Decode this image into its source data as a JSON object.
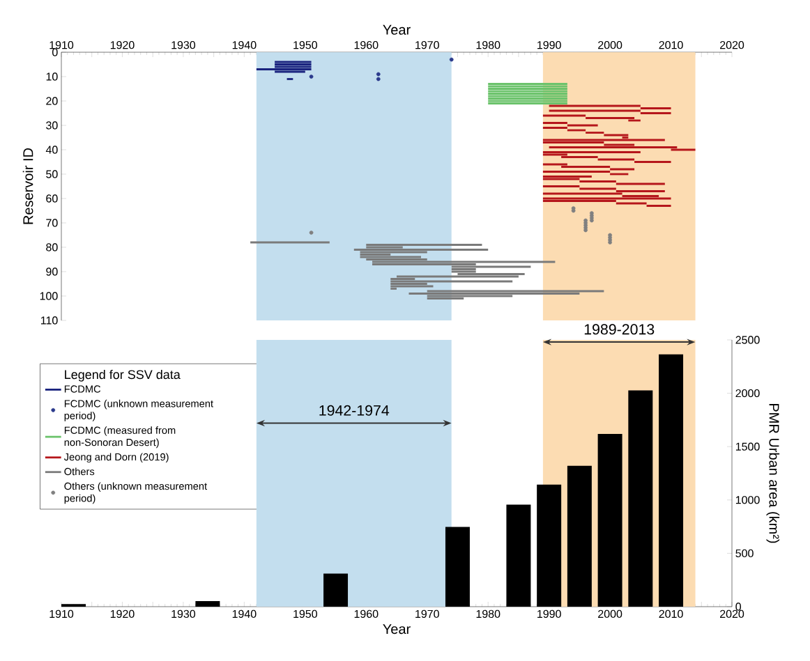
{
  "chart_data": [
    {
      "type": "line",
      "xlabel": "Year",
      "ylabel": "Reservoir ID",
      "legend_title": "Legend for SSV data",
      "legend": "bottom left",
      "xlim": [
        1910,
        2020
      ],
      "ylim": [
        110,
        0
      ],
      "xticks": [
        1910,
        {
          "value": 1915,
          "label": null
        },
        1920,
        {
          "value": 1925,
          "label": null
        },
        1930,
        {
          "value": 1935,
          "label": null
        },
        1940,
        {
          "value": 1945,
          "label": null
        },
        1950,
        {
          "value": 1955,
          "label": null
        },
        1960,
        {
          "value": 1965,
          "label": null
        },
        1970,
        {
          "value": 1975,
          "label": null
        },
        1980,
        {
          "value": 1985,
          "label": null
        },
        1990,
        {
          "value": 1995,
          "label": null
        },
        2000,
        {
          "value": 2005,
          "label": null
        },
        2010,
        {
          "value": 2015,
          "label": null
        },
        2020
      ],
      "yticks": [
        0,
        10,
        20,
        30,
        40,
        50,
        60,
        70,
        80,
        90,
        100,
        110
      ],
      "bands": [
        {
          "axis": "x",
          "from": 1942,
          "to": 1974,
          "color": "#c3deee"
        },
        {
          "axis": "x",
          "from": 1989,
          "to": 2014,
          "color": "#fcdcb2"
        }
      ],
      "series": [
        {
          "name": "FCDMC",
          "type": "line",
          "color": "#1a237e",
          "x": [
            1945,
            1951
          ],
          "values": [
            4,
            4
          ]
        },
        {
          "type": "line",
          "color": "#1a237e",
          "x": [
            1945,
            1951
          ],
          "values": [
            5,
            5
          ]
        },
        {
          "type": "line",
          "color": "#1a237e",
          "x": [
            1945,
            1951
          ],
          "values": [
            6,
            6
          ]
        },
        {
          "type": "line",
          "color": "#1a237e",
          "x": [
            1942,
            1951
          ],
          "values": [
            7,
            7
          ]
        },
        {
          "type": "line",
          "color": "#1a237e",
          "x": [
            1945,
            1950
          ],
          "values": [
            8,
            8
          ]
        },
        {
          "type": "line",
          "color": "#1a237e",
          "x": [
            1947,
            1948
          ],
          "values": [
            11,
            11
          ]
        },
        {
          "name": "FCDMC (unknown measurement period)",
          "type": "scatter",
          "color": "#2b3a8c",
          "x": [
            1951,
            1962,
            1962,
            1974
          ],
          "values": [
            10,
            9,
            11,
            3
          ]
        },
        {
          "name": "FCDMC (measured from non-Sonoran Desert)",
          "type": "line",
          "color": "#6cc36c",
          "x": [
            1980,
            1993
          ],
          "values": [
            13,
            13
          ]
        },
        {
          "type": "line",
          "color": "#6cc36c",
          "x": [
            1980,
            1993
          ],
          "values": [
            14,
            14
          ]
        },
        {
          "type": "line",
          "color": "#6cc36c",
          "x": [
            1980,
            1993
          ],
          "values": [
            15,
            15
          ]
        },
        {
          "type": "line",
          "color": "#6cc36c",
          "x": [
            1980,
            1993
          ],
          "values": [
            16,
            16
          ]
        },
        {
          "type": "line",
          "color": "#6cc36c",
          "x": [
            1980,
            1993
          ],
          "values": [
            17,
            17
          ]
        },
        {
          "type": "line",
          "color": "#6cc36c",
          "x": [
            1980,
            1993
          ],
          "values": [
            18,
            18
          ]
        },
        {
          "type": "line",
          "color": "#6cc36c",
          "x": [
            1980,
            1993
          ],
          "values": [
            19,
            19
          ]
        },
        {
          "type": "line",
          "color": "#6cc36c",
          "x": [
            1980,
            1993
          ],
          "values": [
            20,
            20
          ]
        },
        {
          "type": "line",
          "color": "#6cc36c",
          "x": [
            1980,
            1993
          ],
          "values": [
            21,
            21
          ]
        },
        {
          "name": "Jeong and Dorn (2019)",
          "type": "line",
          "color": "#b5161b",
          "x": [
            1990,
            2005
          ],
          "values": [
            22,
            22
          ]
        },
        {
          "type": "line",
          "color": "#b5161b",
          "x": [
            2005,
            2010
          ],
          "values": [
            23,
            23
          ]
        },
        {
          "type": "line",
          "color": "#b5161b",
          "x": [
            1990,
            2005
          ],
          "values": [
            24,
            24
          ]
        },
        {
          "type": "line",
          "color": "#b5161b",
          "x": [
            2005,
            2010
          ],
          "values": [
            25,
            25
          ]
        },
        {
          "type": "line",
          "color": "#b5161b",
          "x": [
            1989,
            1996
          ],
          "values": [
            26,
            26
          ]
        },
        {
          "type": "line",
          "color": "#b5161b",
          "x": [
            1996,
            2004
          ],
          "values": [
            27,
            27
          ]
        },
        {
          "type": "line",
          "color": "#b5161b",
          "x": [
            2003,
            2005
          ],
          "values": [
            28,
            28
          ]
        },
        {
          "type": "line",
          "color": "#b5161b",
          "x": [
            1989,
            1993
          ],
          "values": [
            29,
            29
          ]
        },
        {
          "type": "line",
          "color": "#b5161b",
          "x": [
            1993,
            1998
          ],
          "values": [
            30,
            30
          ]
        },
        {
          "type": "line",
          "color": "#b5161b",
          "x": [
            1989,
            1993
          ],
          "values": [
            31,
            31
          ]
        },
        {
          "type": "line",
          "color": "#b5161b",
          "x": [
            1993,
            1996
          ],
          "values": [
            32,
            32
          ]
        },
        {
          "type": "line",
          "color": "#b5161b",
          "x": [
            1996,
            1999
          ],
          "values": [
            33,
            33
          ]
        },
        {
          "type": "line",
          "color": "#b5161b",
          "x": [
            1999,
            2003
          ],
          "values": [
            34,
            34
          ]
        },
        {
          "type": "line",
          "color": "#b5161b",
          "x": [
            2002,
            2003
          ],
          "values": [
            35,
            35
          ]
        },
        {
          "type": "line",
          "color": "#b5161b",
          "x": [
            1989,
            2009
          ],
          "values": [
            36,
            36
          ]
        },
        {
          "type": "line",
          "color": "#b5161b",
          "x": [
            1989,
            1999
          ],
          "values": [
            37,
            37
          ]
        },
        {
          "type": "line",
          "color": "#b5161b",
          "x": [
            1999,
            2004
          ],
          "values": [
            38,
            38
          ]
        },
        {
          "type": "line",
          "color": "#b5161b",
          "x": [
            1990,
            2011
          ],
          "values": [
            39,
            39
          ]
        },
        {
          "type": "line",
          "color": "#b5161b",
          "x": [
            2010,
            2014
          ],
          "values": [
            40,
            40
          ]
        },
        {
          "type": "line",
          "color": "#b5161b",
          "x": [
            1989,
            2005
          ],
          "values": [
            41,
            41
          ]
        },
        {
          "type": "line",
          "color": "#b5161b",
          "x": [
            1989,
            1993
          ],
          "values": [
            42,
            42
          ]
        },
        {
          "type": "line",
          "color": "#b5161b",
          "x": [
            1992,
            1998
          ],
          "values": [
            43,
            43
          ]
        },
        {
          "type": "line",
          "color": "#b5161b",
          "x": [
            1998,
            2004
          ],
          "values": [
            44,
            44
          ]
        },
        {
          "type": "line",
          "color": "#b5161b",
          "x": [
            2004,
            2010
          ],
          "values": [
            45,
            45
          ]
        },
        {
          "type": "line",
          "color": "#b5161b",
          "x": [
            1989,
            1993
          ],
          "values": [
            46,
            46
          ]
        },
        {
          "type": "line",
          "color": "#b5161b",
          "x": [
            1992,
            2000
          ],
          "values": [
            47,
            47
          ]
        },
        {
          "type": "line",
          "color": "#b5161b",
          "x": [
            2000,
            2004
          ],
          "values": [
            48,
            48
          ]
        },
        {
          "type": "line",
          "color": "#b5161b",
          "x": [
            1989,
            2000
          ],
          "values": [
            49,
            49
          ]
        },
        {
          "type": "line",
          "color": "#b5161b",
          "x": [
            2000,
            2003
          ],
          "values": [
            50,
            50
          ]
        },
        {
          "type": "line",
          "color": "#b5161b",
          "x": [
            1989,
            1997
          ],
          "values": [
            51,
            51
          ]
        },
        {
          "type": "line",
          "color": "#b5161b",
          "x": [
            1989,
            1995
          ],
          "values": [
            52,
            52
          ]
        },
        {
          "type": "line",
          "color": "#b5161b",
          "x": [
            1995,
            2001
          ],
          "values": [
            53,
            53
          ]
        },
        {
          "type": "line",
          "color": "#b5161b",
          "x": [
            2001,
            2009
          ],
          "values": [
            54,
            54
          ]
        },
        {
          "type": "line",
          "color": "#b5161b",
          "x": [
            1989,
            1995
          ],
          "values": [
            55,
            55
          ]
        },
        {
          "type": "line",
          "color": "#b5161b",
          "x": [
            1995,
            2001
          ],
          "values": [
            56,
            56
          ]
        },
        {
          "type": "line",
          "color": "#b5161b",
          "x": [
            2001,
            2009
          ],
          "values": [
            57,
            57
          ]
        },
        {
          "type": "line",
          "color": "#b5161b",
          "x": [
            1989,
            2002
          ],
          "values": [
            58,
            58
          ]
        },
        {
          "type": "line",
          "color": "#b5161b",
          "x": [
            2002,
            2008
          ],
          "values": [
            59,
            59
          ]
        },
        {
          "type": "line",
          "color": "#b5161b",
          "x": [
            1989,
            2010
          ],
          "values": [
            60,
            60
          ]
        },
        {
          "type": "line",
          "color": "#b5161b",
          "x": [
            1989,
            2001
          ],
          "values": [
            61,
            61
          ]
        },
        {
          "type": "line",
          "color": "#b5161b",
          "x": [
            2001,
            2006
          ],
          "values": [
            62,
            62
          ]
        },
        {
          "type": "line",
          "color": "#b5161b",
          "x": [
            2006,
            2010
          ],
          "values": [
            63,
            63
          ]
        },
        {
          "name": "Others",
          "type": "line",
          "color": "#7a7a7a",
          "x": [
            1941,
            1954
          ],
          "values": [
            78,
            78
          ]
        },
        {
          "type": "line",
          "color": "#7a7a7a",
          "x": [
            1960,
            1979
          ],
          "values": [
            79,
            79
          ]
        },
        {
          "type": "line",
          "color": "#7a7a7a",
          "x": [
            1960,
            1966
          ],
          "values": [
            80,
            80
          ]
        },
        {
          "type": "line",
          "color": "#7a7a7a",
          "x": [
            1958,
            1980
          ],
          "values": [
            81,
            81
          ]
        },
        {
          "type": "line",
          "color": "#7a7a7a",
          "x": [
            1959,
            1970
          ],
          "values": [
            82,
            82
          ]
        },
        {
          "type": "line",
          "color": "#7a7a7a",
          "x": [
            1959,
            1964
          ],
          "values": [
            83,
            83
          ]
        },
        {
          "type": "line",
          "color": "#7a7a7a",
          "x": [
            1959,
            1969
          ],
          "values": [
            84,
            84
          ]
        },
        {
          "type": "line",
          "color": "#7a7a7a",
          "x": [
            1960,
            1970
          ],
          "values": [
            85,
            85
          ]
        },
        {
          "type": "line",
          "color": "#7a7a7a",
          "x": [
            1961,
            1991
          ],
          "values": [
            86,
            86
          ]
        },
        {
          "type": "line",
          "color": "#7a7a7a",
          "x": [
            1961,
            1978
          ],
          "values": [
            87,
            87
          ]
        },
        {
          "type": "line",
          "color": "#7a7a7a",
          "x": [
            1974,
            1987
          ],
          "values": [
            88,
            88
          ]
        },
        {
          "type": "line",
          "color": "#7a7a7a",
          "x": [
            1974,
            1978
          ],
          "values": [
            89,
            89
          ]
        },
        {
          "type": "line",
          "color": "#7a7a7a",
          "x": [
            1974,
            1978
          ],
          "values": [
            90,
            90
          ]
        },
        {
          "type": "line",
          "color": "#7a7a7a",
          "x": [
            1975,
            1986
          ],
          "values": [
            91,
            91
          ]
        },
        {
          "type": "line",
          "color": "#7a7a7a",
          "x": [
            1965,
            1985
          ],
          "values": [
            92,
            92
          ]
        },
        {
          "type": "line",
          "color": "#7a7a7a",
          "x": [
            1964,
            1968
          ],
          "values": [
            93,
            93
          ]
        },
        {
          "type": "line",
          "color": "#7a7a7a",
          "x": [
            1964,
            1984
          ],
          "values": [
            94,
            94
          ]
        },
        {
          "type": "line",
          "color": "#7a7a7a",
          "x": [
            1964,
            1970
          ],
          "values": [
            95,
            95
          ]
        },
        {
          "type": "line",
          "color": "#7a7a7a",
          "x": [
            1964,
            1971
          ],
          "values": [
            96,
            96
          ]
        },
        {
          "type": "line",
          "color": "#7a7a7a",
          "x": [
            1964,
            1965
          ],
          "values": [
            97,
            97
          ]
        },
        {
          "type": "line",
          "color": "#7a7a7a",
          "x": [
            1970,
            1999
          ],
          "values": [
            98,
            98
          ]
        },
        {
          "type": "line",
          "color": "#7a7a7a",
          "x": [
            1967,
            1995
          ],
          "values": [
            99,
            99
          ]
        },
        {
          "type": "line",
          "color": "#7a7a7a",
          "x": [
            1970,
            1984
          ],
          "values": [
            100,
            100
          ]
        },
        {
          "type": "line",
          "color": "#7a7a7a",
          "x": [
            1970,
            1976
          ],
          "values": [
            101,
            101
          ]
        },
        {
          "name": "Others (unknown measurement period)",
          "type": "scatter",
          "color": "#808080",
          "x": [
            1951,
            1994,
            1994,
            1997,
            1997,
            1997,
            1997,
            1996,
            1996,
            1996,
            1996,
            1996,
            2000,
            2000,
            2000,
            2000
          ],
          "values": [
            74,
            64,
            65,
            66,
            67,
            68,
            69,
            69,
            70,
            71,
            72,
            73,
            75,
            76,
            77,
            78
          ]
        }
      ]
    },
    {
      "type": "bar",
      "xlabel": "Year",
      "ylabel": "PMR Urban area (km²)",
      "xlim": [
        1910,
        2020
      ],
      "ylim": [
        0,
        2500
      ],
      "xticks": [
        1910,
        {
          "value": 1915,
          "label": null
        },
        1920,
        {
          "value": 1925,
          "label": null
        },
        1930,
        {
          "value": 1935,
          "label": null
        },
        1940,
        {
          "value": 1945,
          "label": null
        },
        1950,
        {
          "value": 1955,
          "label": null
        },
        1960,
        {
          "value": 1965,
          "label": null
        },
        1970,
        {
          "value": 1975,
          "label": null
        },
        1980,
        {
          "value": 1985,
          "label": null
        },
        1990,
        {
          "value": 1995,
          "label": null
        },
        2000,
        {
          "value": 2005,
          "label": null
        },
        2010,
        {
          "value": 2015,
          "label": null
        },
        2020
      ],
      "yticks": [
        0,
        500,
        1000,
        1500,
        2000,
        2500
      ],
      "x": [
        1912,
        1934,
        1955,
        1975,
        1985,
        1990,
        1995,
        2000,
        2005,
        2010
      ],
      "values": [
        25,
        53,
        310,
        748,
        956,
        1144,
        1320,
        1618,
        2026,
        2365
      ],
      "color": "#000000",
      "bands": [
        {
          "axis": "x",
          "from": 1942,
          "to": 1974,
          "color": "#c3deee"
        },
        {
          "axis": "x",
          "from": 1989,
          "to": 2014,
          "color": "#fcdcb2"
        }
      ],
      "annotations": [
        "1942-1974",
        "1989-2013"
      ]
    }
  ]
}
